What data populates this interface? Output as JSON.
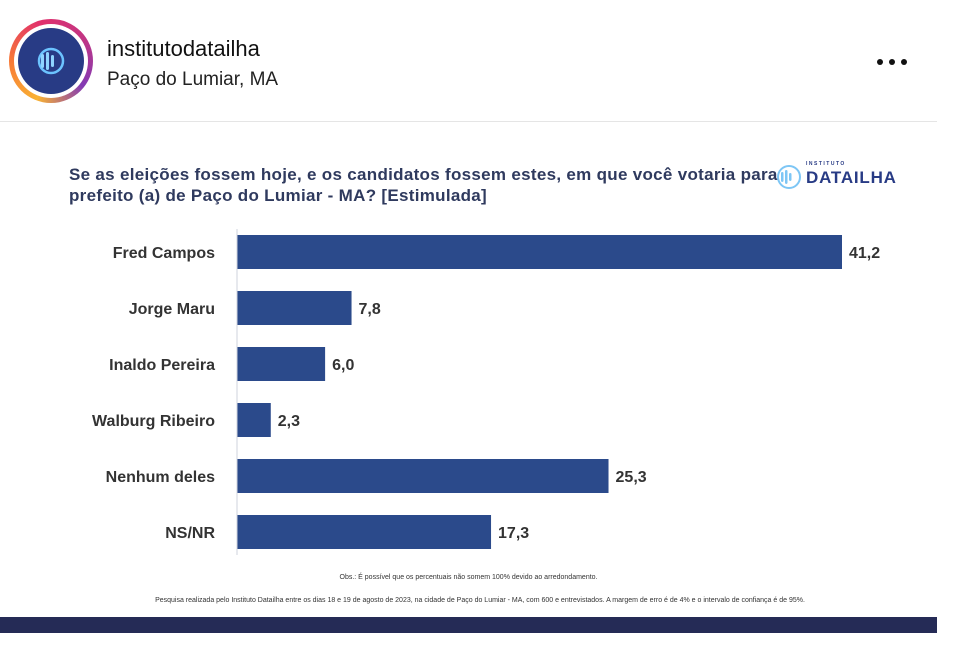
{
  "header": {
    "username": "institutodatailha",
    "location": "Paço do Lumiar, MA",
    "avatar_icon": "datailha-logo-icon",
    "more_icon": "more-options-icon"
  },
  "post": {
    "title": "Se as eleições fossem hoje, e os candidatos fossem estes, em que você votaria para prefeito (a) de Paço do Lumiar - MA? [Estimulada]",
    "logo_top": "INSTITUTO",
    "logo_word": "DATAILHA",
    "note": "Obs.: É possível que os percentuais não somem 100% devido ao arredondamento.",
    "source": "Pesquisa realizada pelo Instituto Datailha entre os dias 18 e 19 de agosto de 2023, na cidade de Paço do Lumiar - MA, com 600 e entrevistados. A margem de erro é de 4% e o intervalo de confiança é de 95%.",
    "bar_color": "#2b4a8b",
    "bottom_bar_color": "#252b56"
  },
  "chart_data": {
    "type": "bar",
    "orientation": "horizontal",
    "categories": [
      "Fred Campos",
      "Jorge Maru",
      "Inaldo Pereira",
      "Walburg Ribeiro",
      "Nenhum deles",
      "NS/NR"
    ],
    "values": [
      41.2,
      7.8,
      6.0,
      2.3,
      25.3,
      17.3
    ],
    "value_labels": [
      "41,2",
      "7,8",
      "6,0",
      "2,3",
      "25,3",
      "17,3"
    ],
    "xlim": [
      0,
      42
    ],
    "grid": false,
    "legend": "none"
  }
}
